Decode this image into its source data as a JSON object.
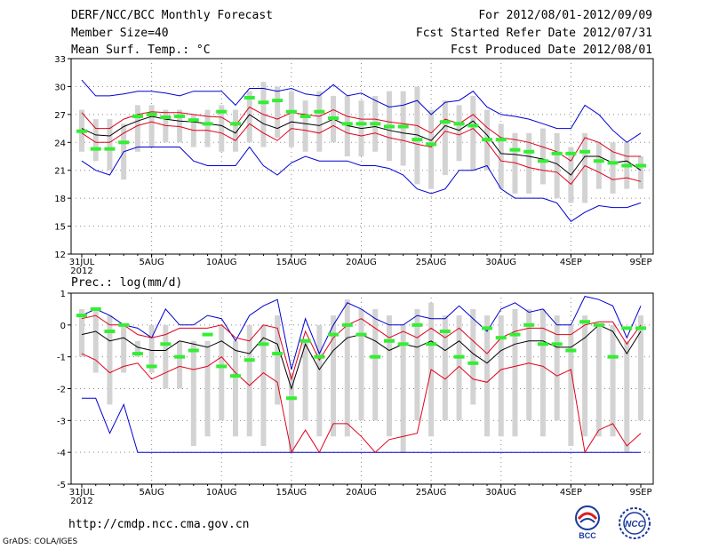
{
  "header": {
    "title": "DERF/NCC/BCC Monthly Forecast",
    "member_size": "Member Size=40",
    "variable_temp": "Mean Surf. Temp.: °C",
    "forecast_period": "For 2012/08/01-2012/09/09",
    "fcst_started": "Fcst Started Refer Date 2012/07/31",
    "fcst_produced": "Fcst Produced Date 2012/08/01"
  },
  "precip_label": "Prec.: log(mm/d)",
  "footer": {
    "url": "http://cmdp.ncc.cma.gov.cn",
    "grads": "GrADS: COLA/IGES",
    "logo_bcc": "BCC",
    "logo_ncc": "NCC"
  },
  "colors": {
    "box": "#d3d3d3",
    "median": "#000000",
    "quantile": "#e0001b",
    "extreme": "#0000d0",
    "observed": "#33ee33",
    "grid": "#888888"
  },
  "chart_data": [
    {
      "type": "box",
      "name": "temperature",
      "ylabel": "Mean Surf. Temp.: °C",
      "ylim": [
        12,
        33
      ],
      "yticks": [
        12,
        15,
        18,
        21,
        24,
        27,
        30,
        33
      ],
      "x": [
        0,
        1,
        2,
        3,
        4,
        5,
        6,
        7,
        8,
        9,
        10,
        11,
        12,
        13,
        14,
        15,
        16,
        17,
        18,
        19,
        20,
        21,
        22,
        23,
        24,
        25,
        26,
        27,
        28,
        29,
        30,
        31,
        32,
        33,
        34,
        35,
        36,
        37,
        38,
        39,
        40
      ],
      "xtick_positions": [
        0,
        5,
        10,
        15,
        20,
        25,
        30,
        35,
        40
      ],
      "xtick_labels": [
        "31JUL",
        "5AUG",
        "10AUG",
        "15AUG",
        "20AUG",
        "25AUG",
        "30AUG",
        "4SEP",
        "9SEP"
      ],
      "xtick_sublabel": "2012",
      "box_low": [
        23.0,
        22.0,
        21.0,
        20.0,
        23.0,
        23.5,
        24.0,
        24.0,
        23.5,
        23.5,
        23.0,
        23.0,
        24.0,
        23.5,
        24.5,
        23.5,
        23.0,
        23.0,
        24.0,
        22.5,
        22.5,
        23.0,
        22.0,
        21.5,
        19.5,
        19.0,
        20.5,
        22.0,
        21.0,
        21.0,
        19.0,
        18.5,
        18.5,
        19.5,
        18.0,
        17.5,
        17.5,
        19.0,
        18.5,
        19.0,
        19.0
      ],
      "box_high": [
        27.5,
        26.5,
        26.5,
        26.0,
        28.0,
        28.0,
        27.5,
        27.5,
        27.0,
        27.5,
        28.0,
        27.5,
        29.5,
        30.5,
        30.0,
        29.5,
        28.5,
        29.5,
        29.0,
        29.0,
        28.5,
        29.0,
        29.5,
        29.5,
        30.0,
        27.5,
        28.5,
        28.0,
        29.0,
        27.5,
        26.0,
        25.0,
        25.0,
        25.5,
        25.0,
        23.5,
        25.0,
        24.0,
        24.0,
        24.0,
        22.5
      ],
      "median": [
        25.5,
        24.8,
        24.7,
        25.7,
        26.3,
        26.8,
        26.5,
        26.3,
        26.2,
        26.0,
        25.8,
        25.0,
        27.0,
        26.0,
        25.5,
        26.2,
        26.0,
        25.8,
        26.5,
        25.8,
        25.5,
        25.7,
        25.3,
        25.0,
        24.8,
        24.2,
        25.8,
        25.3,
        26.3,
        24.8,
        22.8,
        22.7,
        22.5,
        22.2,
        21.7,
        20.5,
        22.5,
        22.5,
        21.8,
        22.0,
        21.0
      ],
      "q_upper": [
        27.2,
        25.5,
        25.5,
        26.5,
        27.0,
        27.3,
        27.2,
        27.2,
        27.0,
        26.8,
        26.7,
        25.8,
        27.8,
        27.0,
        26.5,
        27.2,
        27.0,
        26.8,
        27.5,
        26.8,
        26.5,
        26.5,
        26.2,
        26.0,
        25.8,
        25.0,
        26.5,
        26.0,
        27.0,
        25.6,
        24.5,
        24.3,
        24.0,
        23.5,
        23.0,
        22.0,
        24.5,
        24.0,
        23.0,
        22.5,
        22.5
      ],
      "q_lower": [
        25.0,
        24.0,
        24.0,
        25.0,
        25.8,
        26.2,
        25.8,
        25.7,
        25.3,
        25.3,
        25.0,
        24.2,
        26.0,
        25.0,
        24.2,
        25.5,
        25.3,
        25.0,
        25.8,
        25.0,
        24.7,
        25.0,
        24.5,
        24.2,
        23.8,
        23.5,
        25.2,
        24.8,
        25.5,
        24.0,
        22.0,
        21.8,
        21.3,
        21.0,
        20.8,
        19.5,
        21.5,
        20.8,
        20.0,
        20.2,
        19.8
      ],
      "max": [
        30.7,
        29.0,
        29.0,
        29.2,
        29.5,
        29.5,
        29.3,
        29.0,
        29.5,
        29.5,
        29.5,
        28.0,
        29.8,
        29.8,
        29.5,
        29.8,
        29.2,
        29.0,
        30.2,
        29.0,
        29.3,
        28.5,
        27.8,
        28.0,
        28.5,
        27.0,
        28.3,
        28.5,
        29.5,
        27.8,
        27.0,
        26.8,
        26.5,
        26.0,
        25.5,
        25.5,
        28.0,
        27.0,
        25.3,
        24.0,
        25.0
      ],
      "min": [
        22.0,
        21.0,
        20.5,
        23.0,
        23.5,
        23.5,
        23.5,
        23.5,
        22.0,
        21.5,
        21.5,
        21.5,
        23.5,
        21.5,
        20.5,
        21.8,
        22.5,
        22.0,
        22.0,
        22.0,
        21.5,
        21.5,
        21.2,
        20.5,
        19.0,
        18.5,
        19.0,
        21.0,
        21.0,
        21.5,
        19.0,
        18.0,
        18.0,
        18.0,
        17.5,
        15.5,
        16.5,
        17.2,
        17.0,
        17.0,
        17.5
      ],
      "observed": [
        25.2,
        23.3,
        23.3,
        24.0,
        26.8,
        27.0,
        26.7,
        26.8,
        26.4,
        26.0,
        27.3,
        26.0,
        28.8,
        28.3,
        28.5,
        27.3,
        26.8,
        27.3,
        26.6,
        26.0,
        26.0,
        26.0,
        25.7,
        25.7,
        24.3,
        23.8,
        26.2,
        26.0,
        25.8,
        24.3,
        24.3,
        23.2,
        23.0,
        22.0,
        22.8,
        22.8,
        23.0,
        22.0,
        21.8,
        21.5,
        21.5
      ]
    },
    {
      "type": "box",
      "name": "precipitation",
      "ylabel": "Prec.: log(mm/d)",
      "ylim": [
        -5,
        1
      ],
      "yticks": [
        -5,
        -4,
        -3,
        -2,
        -1,
        0,
        1
      ],
      "x": [
        0,
        1,
        2,
        3,
        4,
        5,
        6,
        7,
        8,
        9,
        10,
        11,
        12,
        13,
        14,
        15,
        16,
        17,
        18,
        19,
        20,
        21,
        22,
        23,
        24,
        25,
        26,
        27,
        28,
        29,
        30,
        31,
        32,
        33,
        34,
        35,
        36,
        37,
        38,
        39,
        40
      ],
      "xtick_positions": [
        0,
        5,
        10,
        15,
        20,
        25,
        30,
        35,
        40
      ],
      "xtick_labels": [
        "31JUL",
        "5AUG",
        "10AUG",
        "15AUG",
        "20AUG",
        "25AUG",
        "30AUG",
        "4SEP",
        "9SEP"
      ],
      "xtick_sublabel": "2012",
      "box_low": [
        -1.0,
        -1.5,
        -2.5,
        -1.5,
        -1.0,
        -1.5,
        -2.0,
        -2.0,
        -3.8,
        -3.5,
        -3.0,
        -3.5,
        -3.5,
        -3.8,
        -2.5,
        -4.0,
        -3.0,
        -3.5,
        -3.5,
        -3.5,
        -3.0,
        -3.0,
        -3.5,
        -4.0,
        -3.0,
        -3.5,
        -3.0,
        -3.0,
        -2.5,
        -3.5,
        -3.5,
        -3.5,
        -3.0,
        -3.5,
        -3.0,
        -3.8,
        -3.5,
        -3.5,
        -3.5,
        -4.0,
        -3.0
      ],
      "box_high": [
        0.5,
        0.5,
        0.3,
        0.0,
        -0.5,
        0.0,
        0.0,
        -0.5,
        -0.5,
        -0.5,
        0.0,
        -0.5,
        0.0,
        0.0,
        0.3,
        -1.5,
        -0.5,
        0.0,
        0.3,
        0.8,
        0.5,
        0.5,
        0.3,
        0.0,
        0.5,
        0.7,
        0.3,
        0.3,
        0.5,
        0.3,
        0.3,
        0.5,
        0.5,
        0.5,
        0.3,
        0.0,
        0.3,
        0.0,
        0.0,
        -0.5,
        0.3
      ],
      "median": [
        -0.3,
        -0.2,
        -0.5,
        -0.4,
        -0.7,
        -0.8,
        -0.8,
        -0.5,
        -0.6,
        -0.7,
        -0.5,
        -0.8,
        -0.9,
        -0.4,
        -0.6,
        -2.0,
        -0.6,
        -1.4,
        -0.8,
        -0.4,
        -0.3,
        -0.5,
        -0.8,
        -0.6,
        -0.7,
        -0.5,
        -0.8,
        -0.5,
        -0.9,
        -1.2,
        -0.8,
        -0.6,
        -0.5,
        -0.5,
        -0.7,
        -0.7,
        -0.4,
        0.0,
        -0.2,
        -0.9,
        -0.2
      ],
      "q_upper": [
        0.2,
        0.3,
        0.0,
        0.0,
        -0.3,
        -0.4,
        -0.3,
        -0.1,
        -0.1,
        -0.1,
        0.0,
        -0.4,
        -0.5,
        0.0,
        -0.1,
        -1.7,
        -0.2,
        -1.1,
        -0.4,
        0.0,
        0.2,
        -0.1,
        -0.4,
        -0.2,
        -0.4,
        -0.1,
        -0.4,
        -0.1,
        -0.5,
        -0.9,
        -0.4,
        -0.2,
        -0.1,
        -0.1,
        -0.3,
        -0.3,
        0.0,
        0.1,
        0.1,
        -0.6,
        0.0
      ],
      "q_lower": [
        -0.9,
        -1.1,
        -1.5,
        -1.3,
        -1.2,
        -1.7,
        -1.5,
        -1.3,
        -1.4,
        -1.3,
        -1.0,
        -1.5,
        -1.9,
        -1.5,
        -1.8,
        -4.0,
        -3.3,
        -4.0,
        -3.1,
        -3.1,
        -3.5,
        -4.0,
        -3.6,
        -3.5,
        -3.4,
        -1.4,
        -1.7,
        -1.3,
        -1.7,
        -1.8,
        -1.4,
        -1.3,
        -1.2,
        -1.3,
        -1.6,
        -1.4,
        -4.0,
        -3.3,
        -3.1,
        -3.8,
        -3.4
      ],
      "max": [
        0.3,
        0.5,
        0.3,
        0.0,
        -0.1,
        -0.4,
        0.5,
        0.0,
        0.0,
        0.3,
        0.2,
        -0.5,
        0.3,
        0.6,
        0.8,
        -1.4,
        0.2,
        -0.9,
        0.0,
        0.7,
        0.5,
        0.2,
        0.0,
        0.0,
        0.3,
        0.2,
        0.2,
        0.6,
        0.2,
        -0.2,
        0.5,
        0.7,
        0.4,
        0.5,
        0.0,
        0.0,
        0.9,
        0.8,
        0.6,
        -0.4,
        0.6
      ],
      "min": [
        -2.3,
        -2.3,
        -3.4,
        -2.5,
        -4.0,
        -4.0,
        -4.0,
        -4.0,
        -4.0,
        -4.0,
        -4.0,
        -4.0,
        -4.0,
        -4.0,
        -4.0,
        -4.0,
        -4.0,
        -4.0,
        -4.0,
        -4.0,
        -4.0,
        -4.0,
        -4.0,
        -4.0,
        -4.0,
        -4.0,
        -4.0,
        -4.0,
        -4.0,
        -4.0,
        -4.0,
        -4.0,
        -4.0,
        -4.0,
        -4.0,
        -4.0,
        -4.0,
        -4.0,
        -4.0,
        -4.0,
        -4.0
      ],
      "observed": [
        0.3,
        0.5,
        -0.2,
        0.0,
        -0.9,
        -1.3,
        -0.6,
        -1.0,
        -0.8,
        -0.3,
        -1.3,
        -1.6,
        -1.1,
        -0.6,
        -0.9,
        -2.3,
        -0.5,
        -1.0,
        -0.3,
        0.0,
        -0.3,
        -1.0,
        -0.5,
        -0.6,
        0.0,
        -0.6,
        -0.2,
        -1.0,
        -1.2,
        -0.1,
        -0.4,
        -0.3,
        0.0,
        -0.6,
        -0.6,
        -0.8,
        0.1,
        0.0,
        -1.0,
        -0.1,
        -0.1
      ]
    }
  ]
}
